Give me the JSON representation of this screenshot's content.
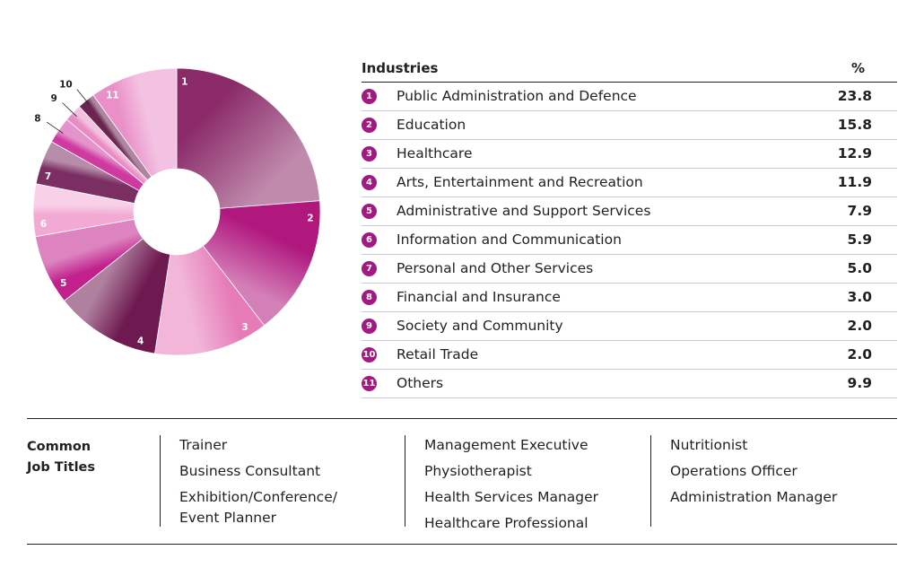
{
  "chart_data": {
    "type": "pie",
    "style": "donut",
    "slice_labels": [
      "1",
      "2",
      "3",
      "4",
      "5",
      "6",
      "7",
      "8",
      "9",
      "10",
      "11"
    ],
    "values": [
      23.8,
      15.8,
      12.9,
      11.9,
      7.9,
      5.9,
      5.0,
      3.0,
      2.0,
      2.0,
      9.9
    ],
    "colors": [
      "#8a2a68",
      "#b0187e",
      "#e67bb8",
      "#6e1a50",
      "#c1208d",
      "#f2a9d3",
      "#7a2e62",
      "#cf3aa0",
      "#e98cc4",
      "#6a2550",
      "#ea8fc8"
    ]
  },
  "table": {
    "header_industries": "Industries",
    "header_percent": "%",
    "rows": [
      {
        "num": "1",
        "name": "Public Administration and Defence",
        "value": "23.8"
      },
      {
        "num": "2",
        "name": "Education",
        "value": "15.8"
      },
      {
        "num": "3",
        "name": "Healthcare",
        "value": "12.9"
      },
      {
        "num": "4",
        "name": "Arts, Entertainment and Recreation",
        "value": "11.9"
      },
      {
        "num": "5",
        "name": "Administrative and Support Services",
        "value": "7.9"
      },
      {
        "num": "6",
        "name": "Information and Communication",
        "value": "5.9"
      },
      {
        "num": "7",
        "name": "Personal and Other Services",
        "value": "5.0"
      },
      {
        "num": "8",
        "name": "Financial and Insurance",
        "value": "3.0"
      },
      {
        "num": "9",
        "name": "Society and Community",
        "value": "2.0"
      },
      {
        "num": "10",
        "name": "Retail Trade",
        "value": "2.0"
      },
      {
        "num": "11",
        "name": "Others",
        "value": "9.9"
      }
    ]
  },
  "jobs": {
    "label": "Common\nJob Titles",
    "col1": [
      "Trainer",
      "Business Consultant",
      "Exhibition/Conference/\nEvent Planner"
    ],
    "col2": [
      "Management Executive",
      "Physiotherapist",
      "Health Services Manager",
      "Healthcare Professional"
    ],
    "col3": [
      "Nutritionist",
      "Operations Officer",
      "Administration Manager"
    ]
  }
}
